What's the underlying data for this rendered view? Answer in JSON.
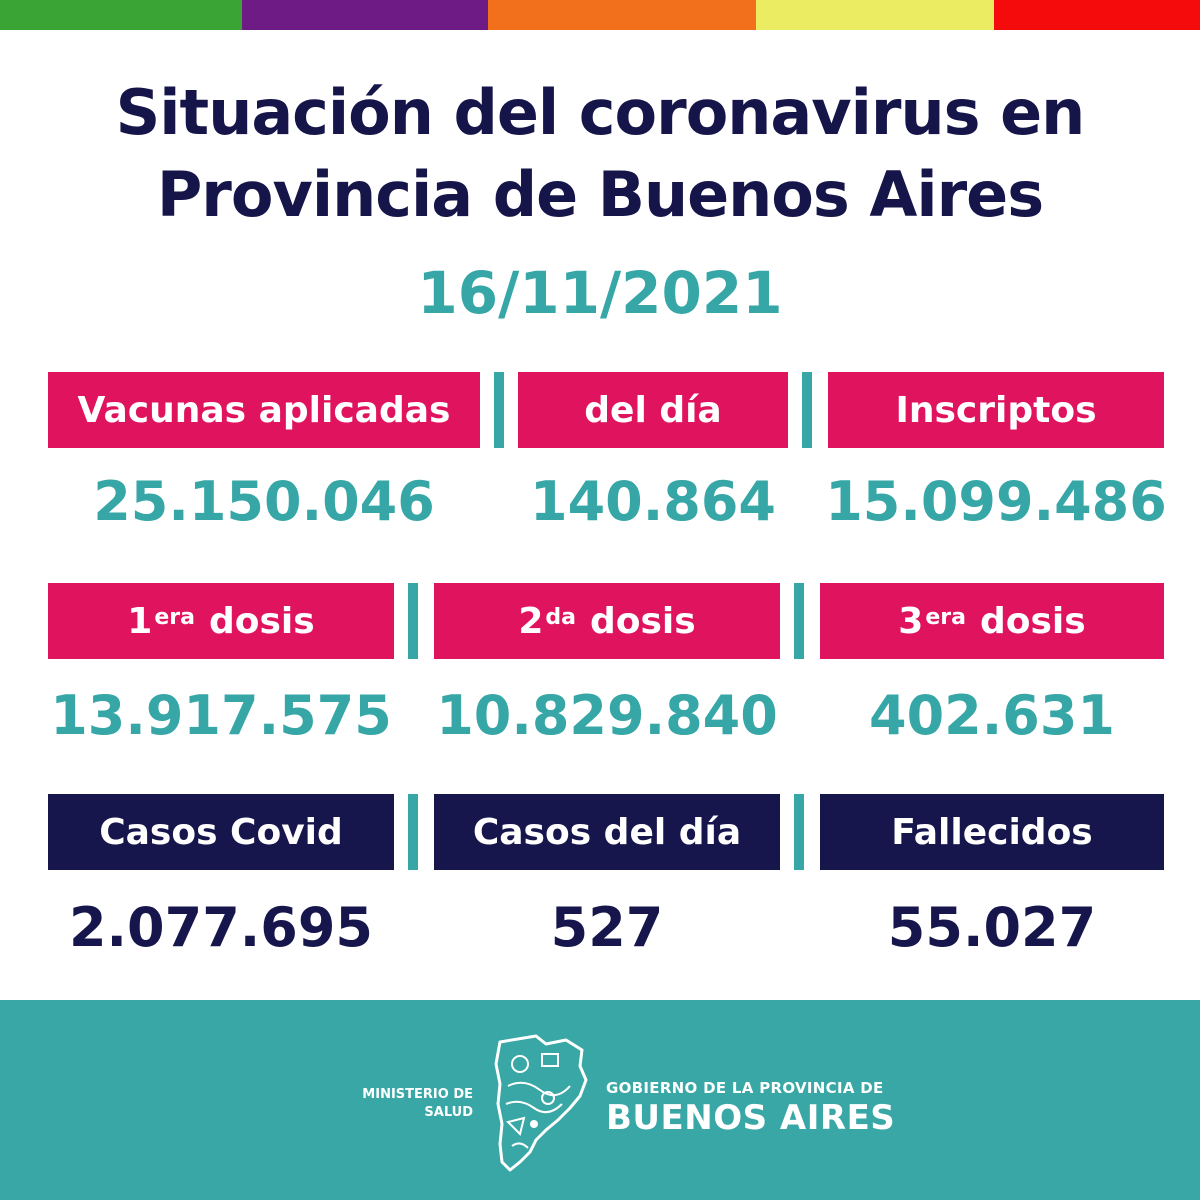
{
  "colors": {
    "stripe": [
      "#3aa435",
      "#6e1b86",
      "#f26f1b",
      "#ecec63",
      "#f50b0b"
    ],
    "pink": "#e0135f",
    "navy": "#16164c",
    "teal": "#36a6a6"
  },
  "title": {
    "line1": "Situación del coronavirus en",
    "line2": "Provincia de Buenos Aires"
  },
  "date": "16/11/2021",
  "row1": {
    "h1": "Vacunas aplicadas",
    "h2": "del día",
    "h3": "Inscriptos",
    "v1": "25.150.046",
    "v2": "140.864",
    "v3": "15.099.486"
  },
  "row2": {
    "h1_num": "1",
    "h1_sup": "era",
    "h1_word": "dosis",
    "h2_num": "2",
    "h2_sup": "da",
    "h2_word": "dosis",
    "h3_num": "3",
    "h3_sup": "era",
    "h3_word": "dosis",
    "v1": "13.917.575",
    "v2": "10.829.840",
    "v3": "402.631"
  },
  "row3": {
    "h1": "Casos Covid",
    "h2": "Casos del día",
    "h3": "Fallecidos",
    "v1": "2.077.695",
    "v2": "527",
    "v3": "55.027"
  },
  "footer": {
    "ministry_line1": "MINISTERIO DE",
    "ministry_line2": "SALUD",
    "gov_line1": "GOBIERNO DE LA PROVINCIA DE",
    "gov_line2": "BUENOS AIRES",
    "map_icon": "buenos-aires-province-map-icon"
  }
}
